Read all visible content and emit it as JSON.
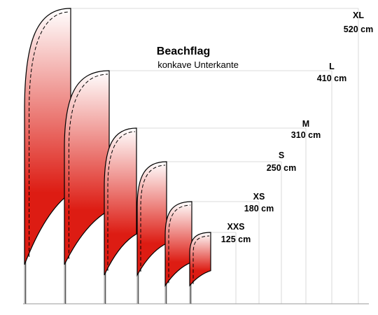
{
  "title": "Beachflag",
  "subtitle": "konkave Unterkante",
  "colors": {
    "flag_top": "#ffffff",
    "flag_bottom": "#dd1c13",
    "guide": "#cfcfcf",
    "pole": "#555555"
  },
  "flags": [
    {
      "size": "XL",
      "height_label": "520 cm",
      "height_cm": 520
    },
    {
      "size": "L",
      "height_label": "410 cm",
      "height_cm": 410
    },
    {
      "size": "M",
      "height_label": "310 cm",
      "height_cm": 310
    },
    {
      "size": "S",
      "height_label": "250 cm",
      "height_cm": 250
    },
    {
      "size": "XS",
      "height_label": "180 cm",
      "height_cm": 180
    },
    {
      "size": "XXS",
      "height_label": "125 cm",
      "height_cm": 125
    }
  ]
}
